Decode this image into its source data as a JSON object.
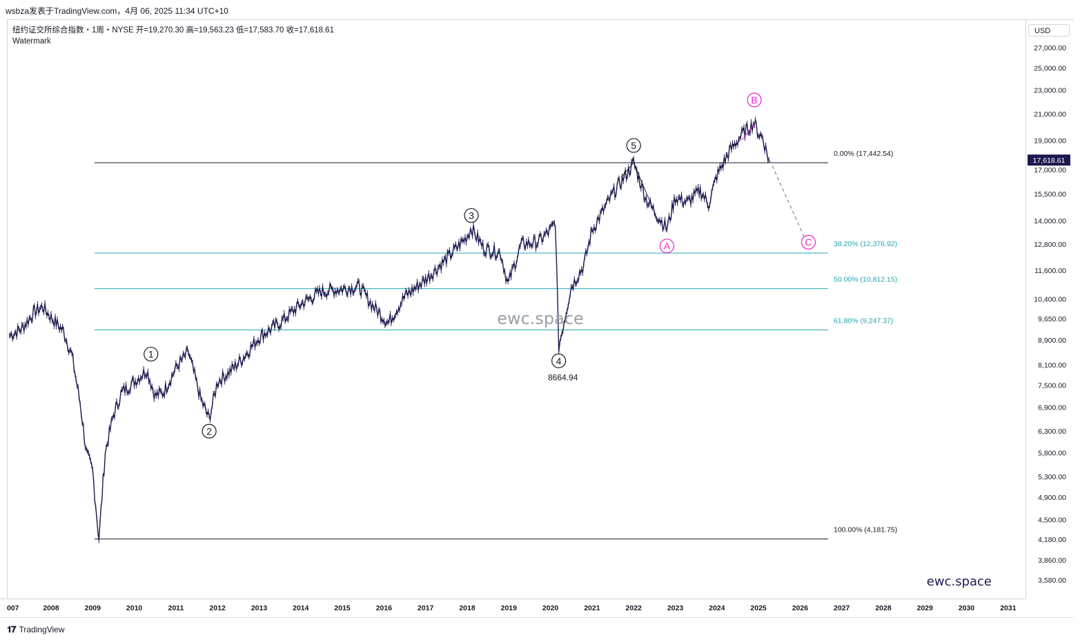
{
  "header": {
    "publish_line": "wsbza发表于TradingView.com，4月 06, 2025 11:34 UTC+10"
  },
  "legend": {
    "symbol_line": "纽约证交所综合指数・1周・NYSE 开=19,270.30 高=19,563.23 低=17,583.70 收=17,618.61",
    "watermark_label": "Watermark"
  },
  "price_axis": {
    "currency": "USD",
    "last_price_label": "17,618.61",
    "ticks": [
      "27,000.00",
      "25,000.00",
      "23,000.00",
      "21,000.00",
      "19,000.00",
      "17,000.00",
      "15,500.00",
      "14,000.00",
      "12,800.00",
      "11,600.00",
      "10,400.00",
      "9,650.00",
      "8,900.00",
      "8,100.00",
      "7,500.00",
      "6,900.00",
      "6,300.00",
      "5,800.00",
      "5,300.00",
      "4,900.00",
      "4,500.00",
      "4,180.00",
      "3,860.00",
      "3,580.00"
    ],
    "tick_values": [
      27000,
      25000,
      23000,
      21000,
      19000,
      17000,
      15500,
      14000,
      12800,
      11600,
      10400,
      9650,
      8900,
      8100,
      7500,
      6900,
      6300,
      5800,
      5300,
      4900,
      4500,
      4180,
      3860,
      3580
    ]
  },
  "time_axis": {
    "labels": [
      "007",
      "2008",
      "2009",
      "2010",
      "2011",
      "2012",
      "2013",
      "2014",
      "2015",
      "2016",
      "2017",
      "2018",
      "2019",
      "2020",
      "2021",
      "2022",
      "2023",
      "2024",
      "2025",
      "2026",
      "2027",
      "2028",
      "2029",
      "2030",
      "2031"
    ]
  },
  "fibonacci": {
    "levels": [
      {
        "label": "0.00% (17,442.54)",
        "value": 17442.54,
        "color": "#131722"
      },
      {
        "label": "38.20% (12,376.92)",
        "value": 12376.92,
        "color": "#22a6b3"
      },
      {
        "label": "50.00% (10,812.15)",
        "value": 10812.15,
        "color": "#22a6b3"
      },
      {
        "label": "61.80% (9,247.37)",
        "value": 9247.37,
        "color": "#22a6b3"
      },
      {
        "label": "100.00% (4,181.75)",
        "value": 4181.75,
        "color": "#131722"
      }
    ]
  },
  "waves": [
    {
      "label": "1",
      "date": "2010.4",
      "color": "#131722"
    },
    {
      "label": "2",
      "date": "2011.8",
      "color": "#131722"
    },
    {
      "label": "3",
      "date": "2018.1",
      "color": "#131722"
    },
    {
      "label": "4",
      "date": "2020.2",
      "color": "#131722"
    },
    {
      "label": "5",
      "date": "2022.0",
      "color": "#131722"
    },
    {
      "label": "A",
      "date": "2022.8",
      "color": "#e91ec4"
    },
    {
      "label": "B",
      "date": "2024.9",
      "color": "#e91ec4"
    },
    {
      "label": "C",
      "date": "2026.2",
      "color": "#e91ec4"
    }
  ],
  "annotations": {
    "wave4_low": "8664.94",
    "watermark_center": "ewc.space",
    "watermark_corner": "ewc.space"
  },
  "chart_data": {
    "type": "line",
    "title": "纽约证交所综合指数・1周・NYSE",
    "scale": "log",
    "ylim": [
      3450,
      28500
    ],
    "xlim": [
      2007.0,
      2031.5
    ],
    "ohlc_last": {
      "open": 19270.3,
      "high": 19563.23,
      "low": 17583.7,
      "close": 17618.61
    },
    "x": [
      2007.0,
      2007.3,
      2007.6,
      2007.8,
      2008.0,
      2008.3,
      2008.5,
      2008.7,
      2008.85,
      2009.0,
      2009.15,
      2009.3,
      2009.5,
      2009.7,
      2010.0,
      2010.3,
      2010.5,
      2010.7,
      2011.0,
      2011.3,
      2011.6,
      2011.8,
      2012.0,
      2012.3,
      2012.6,
      2013.0,
      2013.5,
      2014.0,
      2014.5,
      2015.0,
      2015.4,
      2015.7,
      2016.1,
      2016.5,
      2017.0,
      2017.5,
      2018.0,
      2018.1,
      2018.4,
      2018.8,
      2018.98,
      2019.3,
      2019.7,
      2020.0,
      2020.12,
      2020.2,
      2020.5,
      2020.8,
      2021.0,
      2021.5,
      2021.9,
      2022.0,
      2022.3,
      2022.5,
      2022.8,
      2023.0,
      2023.3,
      2023.6,
      2023.8,
      2024.0,
      2024.3,
      2024.6,
      2024.9,
      2025.0,
      2025.1,
      2025.25
    ],
    "values": [
      9050,
      9300,
      9900,
      10100,
      9700,
      9200,
      8400,
      7000,
      5800,
      5400,
      4181,
      5800,
      6700,
      7300,
      7600,
      7950,
      7200,
      7300,
      8000,
      8500,
      7100,
      6600,
      7600,
      7900,
      8300,
      9000,
      9500,
      10200,
      10700,
      10800,
      10900,
      10200,
      9500,
      10500,
      11200,
      12100,
      13200,
      13620,
      12600,
      12400,
      11000,
      12800,
      12900,
      13500,
      13900,
      8665,
      10900,
      11800,
      13500,
      15500,
      17000,
      17442,
      15200,
      14500,
      13600,
      15300,
      15000,
      15700,
      14900,
      16600,
      18200,
      19400,
      20300,
      19500,
      19200,
      17618
    ]
  }
}
